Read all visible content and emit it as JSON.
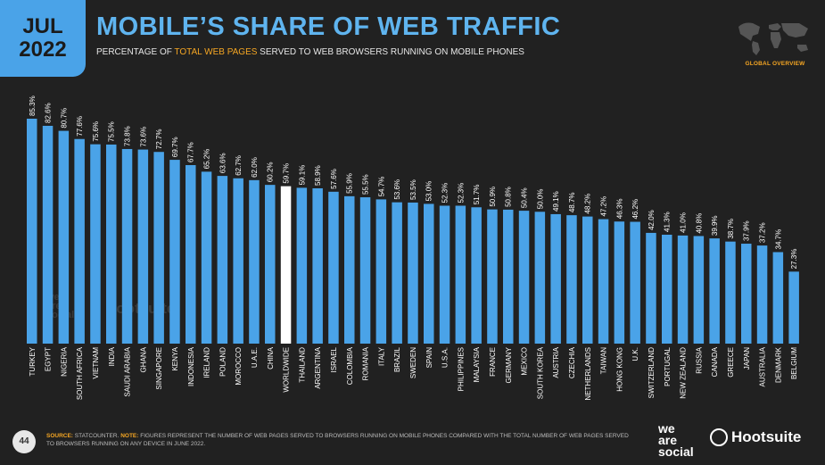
{
  "badge": {
    "month": "JUL",
    "year": "2022"
  },
  "header": {
    "title": "MOBILE’S SHARE OF WEB TRAFFIC",
    "subtitle_pre": "PERCENTAGE OF ",
    "subtitle_highlight": "TOTAL WEB PAGES",
    "subtitle_post": " SERVED TO WEB BROWSERS RUNNING ON MOBILE PHONES",
    "section": "GLOBAL OVERVIEW"
  },
  "colors": {
    "bar": "#4aa3e8",
    "highlight_bar": "#ffffff",
    "accent": "#f5a623",
    "background": "#212121"
  },
  "chart_data": {
    "type": "bar",
    "categories": [
      "TURKEY",
      "EGYPT",
      "NIGERIA",
      "SOUTH AFRICA",
      "VIETNAM",
      "INDIA",
      "SAUDI ARABIA",
      "GHANA",
      "SINGAPORE",
      "KENYA",
      "INDONESIA",
      "IRELAND",
      "POLAND",
      "MOROCCO",
      "U.A.E.",
      "CHINA",
      "WORLDWIDE",
      "THAILAND",
      "ARGENTINA",
      "ISRAEL",
      "COLOMBIA",
      "ROMANIA",
      "ITALY",
      "BRAZIL",
      "SWEDEN",
      "SPAIN",
      "U.S.A.",
      "PHILIPPINES",
      "MALAYSIA",
      "FRANCE",
      "GERMANY",
      "MEXICO",
      "SOUTH KOREA",
      "AUSTRIA",
      "CZECHIA",
      "NETHERLANDS",
      "TAIWAN",
      "HONG KONG",
      "U.K.",
      "SWITZERLAND",
      "PORTUGAL",
      "NEW ZEALAND",
      "RUSSIA",
      "CANADA",
      "GREECE",
      "JAPAN",
      "AUSTRALIA",
      "DENMARK",
      "BELGIUM"
    ],
    "values": [
      85.3,
      82.6,
      80.7,
      77.6,
      75.6,
      75.5,
      73.8,
      73.6,
      72.7,
      69.7,
      67.7,
      65.2,
      63.6,
      62.7,
      62.0,
      60.2,
      59.7,
      59.1,
      58.9,
      57.6,
      55.9,
      55.5,
      54.7,
      53.6,
      53.5,
      53.0,
      52.3,
      52.3,
      51.7,
      50.9,
      50.8,
      50.4,
      50.0,
      49.1,
      48.7,
      48.2,
      47.2,
      46.3,
      46.2,
      42.0,
      41.3,
      41.0,
      40.8,
      39.9,
      38.7,
      37.9,
      37.2,
      34.7,
      27.3
    ],
    "value_labels": [
      "85.3%",
      "82.6%",
      "80.7%",
      "77.6%",
      "75.6%",
      "75.5%",
      "73.8%",
      "73.6%",
      "72.7%",
      "69.7%",
      "67.7%",
      "65.2%",
      "63.6%",
      "62.7%",
      "62.0%",
      "60.2%",
      "59.7%",
      "59.1%",
      "58.9%",
      "57.6%",
      "55.9%",
      "55.5%",
      "54.7%",
      "53.6%",
      "53.5%",
      "53.0%",
      "52.3%",
      "52.3%",
      "51.7%",
      "50.9%",
      "50.8%",
      "50.4%",
      "50.0%",
      "49.1%",
      "48.7%",
      "48.2%",
      "47.2%",
      "46.3%",
      "46.2%",
      "42.0%",
      "41.3%",
      "41.0%",
      "40.8%",
      "39.9%",
      "38.7%",
      "37.9%",
      "37.2%",
      "34.7%",
      "27.3%"
    ],
    "highlight": "WORLDWIDE",
    "title": "MOBILE’S SHARE OF WEB TRAFFIC",
    "xlabel": "",
    "ylabel": "",
    "ylim": [
      0,
      100
    ],
    "grid": false
  },
  "footer": {
    "page_number": "44",
    "source_label": "SOURCE:",
    "source_text": " STATCOUNTER. ",
    "note_label": "NOTE:",
    "note_text": " FIGURES REPRESENT THE NUMBER OF WEB PAGES SERVED TO BROWSERS RUNNING ON MOBILE PHONES COMPARED WITH THE TOTAL NUMBER OF WEB PAGES SERVED TO BROWSERS RUNNING ON ANY DEVICE IN JUNE 2022."
  },
  "logos": {
    "we_are_social": [
      "we",
      "are",
      "social"
    ],
    "hootsuite": "Hootsuite",
    "watermark_was": [
      "we",
      "are",
      "social"
    ],
    "watermark_hs": "Hootsuite"
  }
}
